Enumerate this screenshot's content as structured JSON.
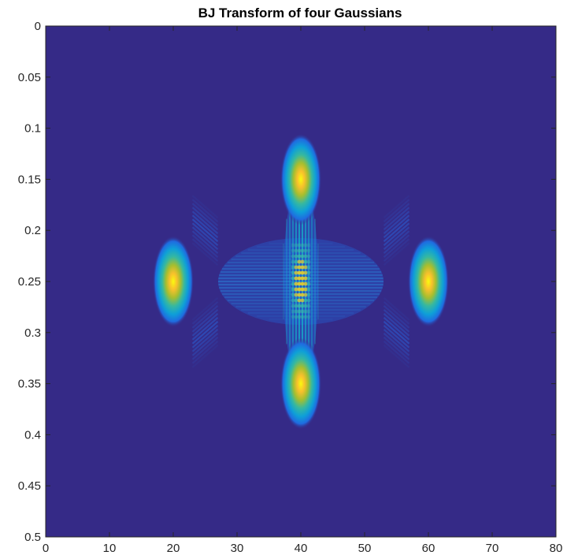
{
  "chart_data": {
    "type": "heatmap",
    "title": "BJ Transform of four Gaussians",
    "xlabel": "",
    "ylabel": "",
    "xlim": [
      0,
      80
    ],
    "ylim": [
      0,
      0.5
    ],
    "y_direction": "reversed",
    "x_ticks": [
      "0",
      "10",
      "20",
      "30",
      "40",
      "50",
      "60",
      "70",
      "80"
    ],
    "y_ticks": [
      "0",
      "0.05",
      "0.1",
      "0.15",
      "0.2",
      "0.25",
      "0.3",
      "0.35",
      "0.4",
      "0.45",
      "0.5"
    ],
    "colormap": "parula",
    "background_color": "#352a87",
    "grid": false,
    "legend": "none",
    "peaks": [
      {
        "x": 40,
        "y": 0.15,
        "intensity": 1.0
      },
      {
        "x": 20,
        "y": 0.25,
        "intensity": 1.0
      },
      {
        "x": 60,
        "y": 0.25,
        "intensity": 1.0
      },
      {
        "x": 40,
        "y": 0.35,
        "intensity": 1.0
      }
    ],
    "cross_terms": [
      {
        "x": 40,
        "y": 0.25,
        "intensity": 0.55,
        "pattern": "interference cross"
      },
      {
        "x": 25,
        "y": 0.2,
        "intensity": 0.12,
        "pattern": "diagonal fringes"
      },
      {
        "x": 55,
        "y": 0.2,
        "intensity": 0.12,
        "pattern": "diagonal fringes"
      },
      {
        "x": 25,
        "y": 0.3,
        "intensity": 0.12,
        "pattern": "diagonal fringes"
      },
      {
        "x": 55,
        "y": 0.3,
        "intensity": 0.12,
        "pattern": "diagonal fringes"
      }
    ]
  }
}
